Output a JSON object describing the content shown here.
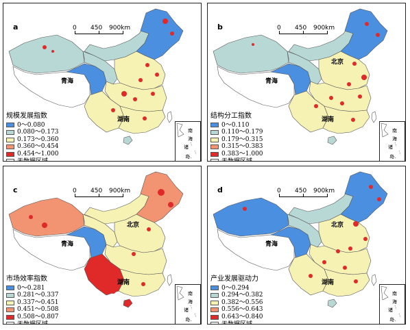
{
  "colors": {
    "blue": "#4a8fe0",
    "lightblue": "#b8d8d6",
    "yellow": "#f6f2b4",
    "orange": "#f29472",
    "red": "#e02a2a",
    "nodata": "#ffffff"
  },
  "scale": {
    "v0": "0",
    "v1": "450",
    "v2": "900km"
  },
  "places": {
    "qinghai": "青海",
    "hunan": "湖南",
    "beijing": "北京"
  },
  "inset": {
    "line1": "南",
    "line2": "海",
    "line3": "诸",
    "line4": "岛"
  },
  "panels": [
    {
      "letter": "a",
      "title": "规模发展指数",
      "legend": [
        "0～0.080",
        "0.080～0.173",
        "0.173～0.360",
        "0.360～0.454",
        "0.454～1.000",
        "无数据区域"
      ],
      "fills": {
        "xinjiang": "lightblue",
        "tibet": "nodata",
        "qinghai": "blue",
        "inner": "lightblue",
        "northeast": "blue",
        "northchina": "yellow",
        "central": "yellow",
        "southwest": "yellow",
        "southeast": "yellow",
        "hainan": "lightblue",
        "gansu": "lightblue"
      }
    },
    {
      "letter": "b",
      "title": "结构分工指数",
      "legend": [
        "0～0.110",
        "0.110～0.179",
        "0.179～0.315",
        "0.315～0.383",
        "0.383～1.000",
        "无数据区域"
      ],
      "fills": {
        "xinjiang": "lightblue",
        "tibet": "nodata",
        "qinghai": "blue",
        "inner": "lightblue",
        "northeast": "blue",
        "northchina": "yellow",
        "central": "yellow",
        "southwest": "yellow",
        "southeast": "yellow",
        "hainan": "lightblue",
        "gansu": "lightblue"
      }
    },
    {
      "letter": "c",
      "title": "市场效率指数",
      "legend": [
        "0～0.281",
        "0.281～0.337",
        "0.337～0.451",
        "0.451～0.508",
        "0.508～0.807",
        "无数据区域"
      ],
      "fills": {
        "xinjiang": "orange",
        "tibet": "nodata",
        "qinghai": "blue",
        "inner": "yellow",
        "northeast": "orange",
        "northchina": "yellow",
        "central": "yellow",
        "southwest": "red",
        "southeast": "yellow",
        "hainan": "red",
        "gansu": "yellow"
      }
    },
    {
      "letter": "d",
      "title": "产业发展驱动力",
      "legend": [
        "0～0.294",
        "0.294～0.382",
        "0.382～0.556",
        "0.556～0.643",
        "0.643～0.840",
        "无数据区域"
      ],
      "fills": {
        "xinjiang": "blue",
        "tibet": "nodata",
        "qinghai": "blue",
        "inner": "lightblue",
        "northeast": "blue",
        "northchina": "yellow",
        "central": "yellow",
        "southwest": "yellow",
        "southeast": "yellow",
        "hainan": "lightblue",
        "gansu": "lightblue"
      }
    }
  ]
}
